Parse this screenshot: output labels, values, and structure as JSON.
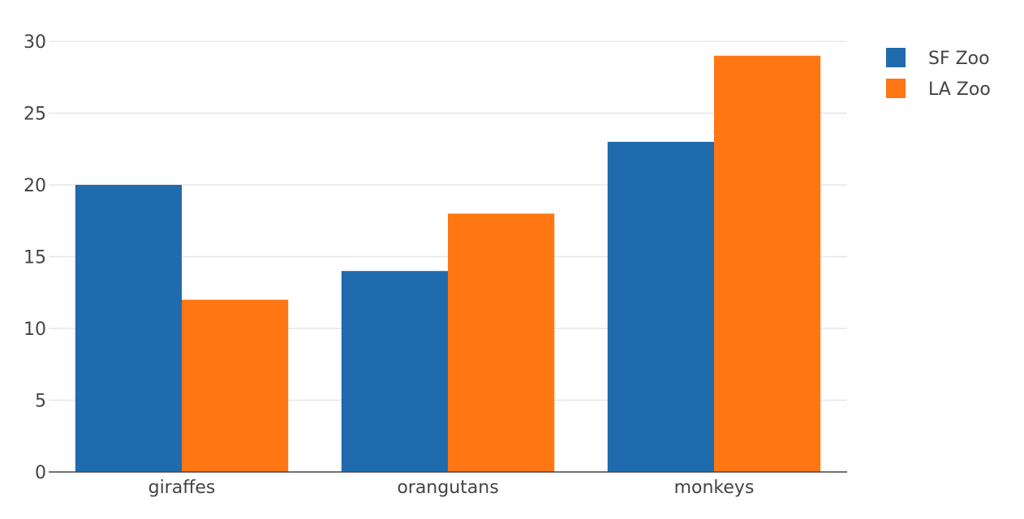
{
  "chart_data": {
    "type": "bar",
    "barmode": "group",
    "categories": [
      "giraffes",
      "orangutans",
      "monkeys"
    ],
    "series": [
      {
        "name": "SF Zoo",
        "color": "#1f6bad",
        "values": [
          20,
          14,
          23
        ]
      },
      {
        "name": "LA Zoo",
        "color": "#ff7613",
        "values": [
          12,
          18,
          29
        ]
      }
    ],
    "title": "",
    "xlabel": "",
    "ylabel": "",
    "ylim": [
      0,
      30
    ],
    "yticks": [
      0,
      5,
      10,
      15,
      20,
      25,
      30
    ],
    "grid": true,
    "legend_position": "top-right"
  }
}
